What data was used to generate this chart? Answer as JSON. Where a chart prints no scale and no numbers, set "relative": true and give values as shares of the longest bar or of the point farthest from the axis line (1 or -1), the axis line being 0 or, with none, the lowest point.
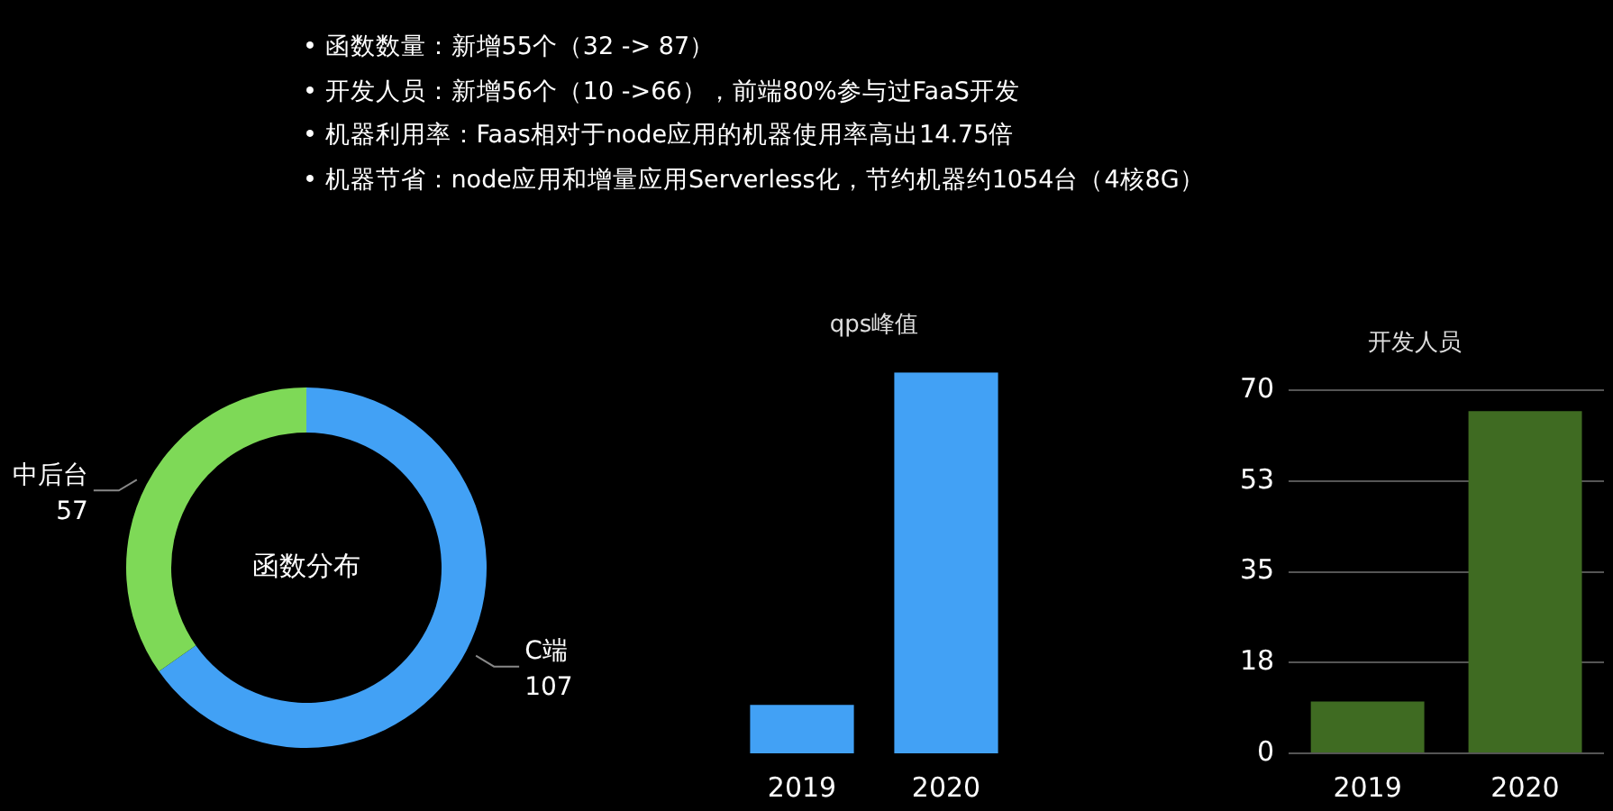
{
  "chart_data": [
    {
      "type": "other",
      "annotations": [
        "• 函数数量：新增55个（32 -> 87）",
        "• 开发人员：新增56个（10 ->66），前端80%参与过FaaS开发",
        "• 机器利用率：Faas相对于node应用的机器使用率高出14.75倍",
        "• 机器节省：node应用和增量应用Serverless化，节约机器约1054台（4核8G）"
      ]
    },
    {
      "type": "donut",
      "title": "函数分布",
      "categories": [
        "C端",
        "中后台"
      ],
      "values": [
        107,
        57
      ],
      "colors": [
        "#42a1f5",
        "#7ed957"
      ],
      "data_labels": true,
      "legend": false
    },
    {
      "type": "bar",
      "title": "qps峰值",
      "categories": [
        "2019",
        "2020"
      ],
      "values": [
        0.127,
        1
      ],
      "color": "#42a1f5",
      "relative": true,
      "legend": false
    },
    {
      "type": "bar",
      "title": "开发人员",
      "categories": [
        "2019",
        "2020"
      ],
      "values": [
        10,
        66
      ],
      "color": "#3f6b22",
      "ylim": [
        0,
        70
      ],
      "yticks": [
        0,
        {
          "value": 17.5,
          "label": "18"
        },
        35,
        {
          "value": 52.5,
          "label": "53"
        },
        70
      ],
      "grid": "y",
      "legend": false
    }
  ]
}
